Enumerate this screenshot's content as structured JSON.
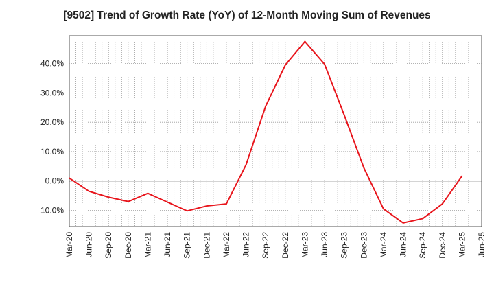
{
  "chart_data": {
    "type": "line",
    "title": "[9502]  Trend of Growth Rate (YoY) of 12-Month Moving Sum of Revenues",
    "xlabel": "",
    "ylabel": "",
    "x": [
      "Mar-20",
      "Jun-20",
      "Sep-20",
      "Dec-20",
      "Mar-21",
      "Jun-21",
      "Sep-21",
      "Dec-21",
      "Mar-22",
      "Jun-22",
      "Sep-22",
      "Dec-22",
      "Mar-23",
      "Jun-23",
      "Sep-23",
      "Dec-23",
      "Mar-24",
      "Jun-24",
      "Sep-24",
      "Dec-24",
      "Mar-25"
    ],
    "x_ticks": [
      "Mar-20",
      "Jun-20",
      "Sep-20",
      "Dec-20",
      "Mar-21",
      "Jun-21",
      "Sep-21",
      "Dec-21",
      "Mar-22",
      "Jun-22",
      "Sep-22",
      "Dec-22",
      "Mar-23",
      "Jun-23",
      "Sep-23",
      "Dec-23",
      "Mar-24",
      "Jun-24",
      "Sep-24",
      "Dec-24",
      "Mar-25",
      "Jun-25"
    ],
    "series": [
      {
        "color": "#e8141b",
        "values": [
          1.0,
          -3.5,
          -5.5,
          -7.0,
          -4.2,
          -7.2,
          -10.2,
          -8.5,
          -7.8,
          5.5,
          25.5,
          39.5,
          47.5,
          39.8,
          22.5,
          4.5,
          -9.5,
          -14.3,
          -12.8,
          -7.8,
          1.7
        ]
      }
    ],
    "ylim": [
      -15.5,
      49.5
    ],
    "y_ticks": [
      -10,
      0,
      10,
      20,
      30,
      40
    ],
    "y_tick_labels": [
      "-10.0%",
      "0.0%",
      "10.0%",
      "20.0%",
      "30.0%",
      "40.0%"
    ],
    "grid": true,
    "legend": "none"
  }
}
